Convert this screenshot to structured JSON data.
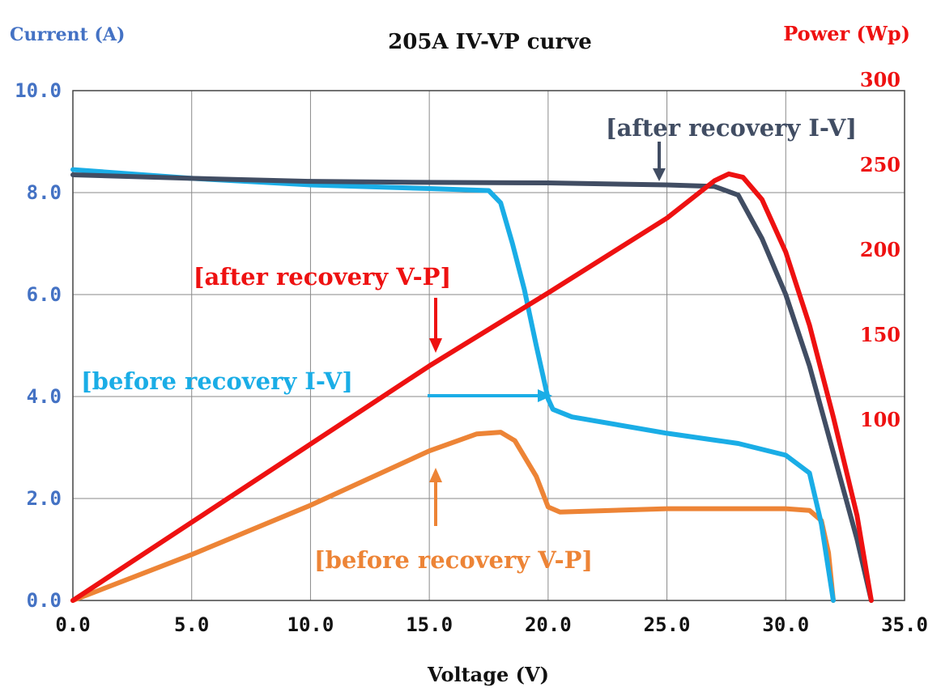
{
  "chart_data": {
    "type": "line",
    "title": "205A IV-VP curve",
    "xlabel": "Voltage (V)",
    "ylabel_left": "Current (A)",
    "ylabel_right": "Power (Wp)",
    "xlim": [
      0,
      35
    ],
    "ylim_left": [
      0,
      10
    ],
    "ylim_right": [
      0,
      300
    ],
    "grid": true,
    "x_ticks": [
      "0.0",
      "5.0",
      "10.0",
      "15.0",
      "20.0",
      "25.0",
      "30.0",
      "35.0"
    ],
    "y_left_ticks": [
      "0.0",
      "2.0",
      "4.0",
      "6.0",
      "8.0",
      "10.0"
    ],
    "y_right_ticks": [
      "100",
      "150",
      "200",
      "250",
      "300"
    ],
    "colors": {
      "after_iv": "#414d63",
      "before_iv": "#1aade6",
      "after_vp": "#ee1111",
      "before_vp": "#ed8436",
      "left_axis": "#4472c4",
      "right_axis": "#ee1111"
    },
    "series": [
      {
        "name": "after recovery I-V",
        "axis": "left",
        "color": "#414d63",
        "points": [
          [
            0,
            8.35
          ],
          [
            5,
            8.28
          ],
          [
            10,
            8.22
          ],
          [
            15,
            8.2
          ],
          [
            20,
            8.19
          ],
          [
            25,
            8.15
          ],
          [
            27,
            8.12
          ],
          [
            28,
            7.95
          ],
          [
            29,
            7.1
          ],
          [
            30,
            6.0
          ],
          [
            31,
            4.6
          ],
          [
            32,
            2.9
          ],
          [
            33,
            1.2
          ],
          [
            33.6,
            0
          ]
        ]
      },
      {
        "name": "before recovery I-V",
        "axis": "left",
        "color": "#1aade6",
        "points": [
          [
            0,
            8.45
          ],
          [
            5,
            8.28
          ],
          [
            10,
            8.15
          ],
          [
            15,
            8.08
          ],
          [
            17.5,
            8.04
          ],
          [
            18,
            7.8
          ],
          [
            18.5,
            7.0
          ],
          [
            19,
            6.1
          ],
          [
            19.5,
            5.0
          ],
          [
            20,
            3.95
          ],
          [
            20.2,
            3.75
          ],
          [
            21,
            3.6
          ],
          [
            25,
            3.28
          ],
          [
            28,
            3.08
          ],
          [
            30,
            2.85
          ],
          [
            31,
            2.5
          ],
          [
            31.5,
            1.5
          ],
          [
            32,
            0
          ]
        ]
      },
      {
        "name": "after recovery V-P",
        "axis": "right",
        "color": "#ee1111",
        "points": [
          [
            0,
            0
          ],
          [
            5,
            46
          ],
          [
            10,
            92
          ],
          [
            15,
            138
          ],
          [
            20,
            181
          ],
          [
            25,
            225
          ],
          [
            27,
            247
          ],
          [
            27.6,
            251
          ],
          [
            28.2,
            249
          ],
          [
            29,
            236
          ],
          [
            30,
            205
          ],
          [
            31,
            162
          ],
          [
            32,
            108
          ],
          [
            33,
            50
          ],
          [
            33.6,
            0
          ]
        ]
      },
      {
        "name": "before recovery V-P",
        "axis": "right",
        "color": "#ed8436",
        "points": [
          [
            0,
            0
          ],
          [
            5,
            27
          ],
          [
            10,
            56
          ],
          [
            15,
            88
          ],
          [
            17,
            98
          ],
          [
            18,
            99
          ],
          [
            18.6,
            94
          ],
          [
            19.5,
            73
          ],
          [
            20,
            55
          ],
          [
            20.5,
            52
          ],
          [
            25,
            54
          ],
          [
            30,
            54
          ],
          [
            31,
            53
          ],
          [
            31.5,
            47
          ],
          [
            31.8,
            28
          ],
          [
            32,
            0
          ]
        ]
      }
    ],
    "annotations": [
      {
        "text": "[after recovery I-V]",
        "color": "#414d63"
      },
      {
        "text": "[after recovery V-P]",
        "color": "#ee1111"
      },
      {
        "text": "[before recovery I-V]",
        "color": "#1aade6"
      },
      {
        "text": "[before recovery V-P]",
        "color": "#ed8436"
      }
    ]
  }
}
